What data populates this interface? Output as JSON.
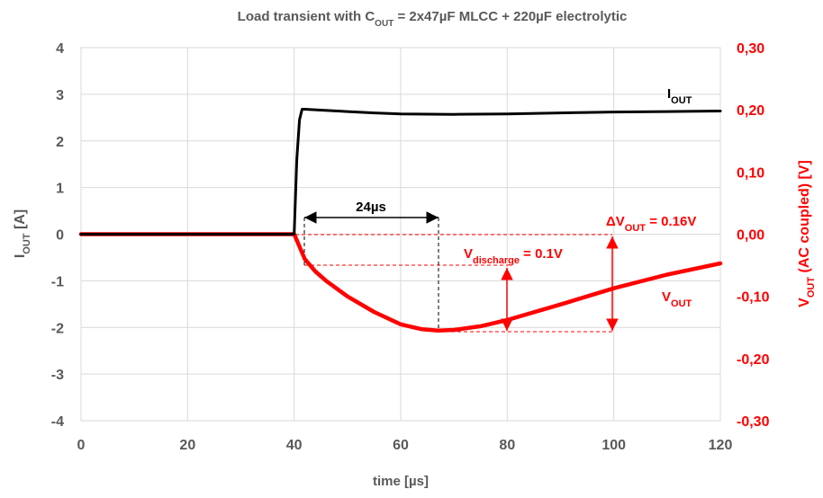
{
  "colors": {
    "current": "#000000",
    "voltage": "#ff0000",
    "grid": "#d9d9d9",
    "tick_text": "#595959"
  },
  "chart_data": {
    "type": "line",
    "title": {
      "main": "Load transient with C",
      "sub": "OUT",
      "rest": " = 2x47µF MLCC + 220µF electrolytic"
    },
    "xlabel": "time  [µs]",
    "ylabel_left": {
      "main": "I",
      "sub": "OUT",
      "rest": "  [A]"
    },
    "ylabel_right": {
      "main": "V",
      "sub": "OUT",
      "rest": " (AC coupled)  [V]"
    },
    "xlim": [
      0,
      120
    ],
    "ylim_left": [
      -4,
      4
    ],
    "ylim_right": [
      -0.3,
      0.3
    ],
    "grid": true,
    "x_ticks": [
      "0",
      "20",
      "40",
      "60",
      "80",
      "100",
      "120"
    ],
    "y_left_ticks": [
      "4",
      "3",
      "2",
      "1",
      "0",
      "-1",
      "-2",
      "-3",
      "-4"
    ],
    "y_right_ticks": [
      "0,30",
      "0,20",
      "0,10",
      "0,00",
      "-0,10",
      "-0,20",
      "-0,30"
    ],
    "series": [
      {
        "name": "IOUT",
        "label": {
          "main": "I",
          "sub": "OUT"
        },
        "axis": "left",
        "points": [
          [
            0,
            0
          ],
          [
            40,
            0
          ],
          [
            40.5,
            1.6
          ],
          [
            41,
            2.45
          ],
          [
            41.5,
            2.68
          ],
          [
            42,
            2.68
          ],
          [
            45,
            2.66
          ],
          [
            50,
            2.63
          ],
          [
            55,
            2.6
          ],
          [
            60,
            2.58
          ],
          [
            70,
            2.57
          ],
          [
            80,
            2.58
          ],
          [
            90,
            2.6
          ],
          [
            100,
            2.62
          ],
          [
            110,
            2.63
          ],
          [
            120,
            2.64
          ]
        ]
      },
      {
        "name": "VOUT",
        "label": {
          "main": "V",
          "sub": "OUT"
        },
        "axis": "right",
        "points": [
          [
            0,
            0
          ],
          [
            40,
            0
          ],
          [
            41,
            -0.02
          ],
          [
            42,
            -0.04
          ],
          [
            44,
            -0.06
          ],
          [
            46,
            -0.075
          ],
          [
            50,
            -0.1
          ],
          [
            55,
            -0.125
          ],
          [
            60,
            -0.145
          ],
          [
            64,
            -0.153
          ],
          [
            67,
            -0.155
          ],
          [
            70,
            -0.154
          ],
          [
            75,
            -0.148
          ],
          [
            80,
            -0.138
          ],
          [
            90,
            -0.113
          ],
          [
            100,
            -0.087
          ],
          [
            110,
            -0.065
          ],
          [
            120,
            -0.047
          ]
        ]
      }
    ],
    "annotations": {
      "time_label": "24µs",
      "vdis": {
        "main": "V",
        "sub": "discharge",
        "rest": " = 0.1V"
      },
      "dv": {
        "main": "ΔV",
        "sub": "OUT",
        "rest": " = 0.16V"
      }
    }
  }
}
